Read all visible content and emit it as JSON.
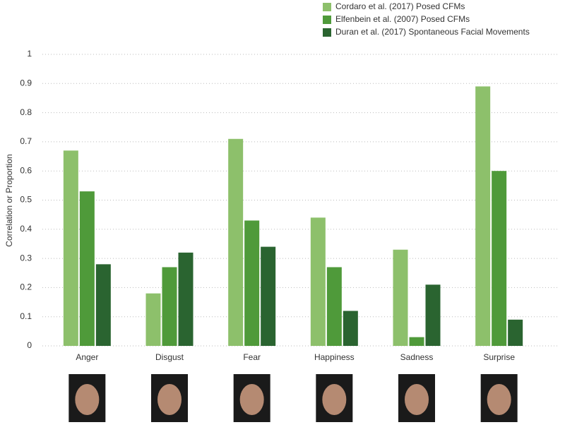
{
  "chart_data": {
    "type": "bar",
    "y_label": "Correlation or Proportion",
    "categories": [
      "Anger",
      "Disgust",
      "Fear",
      "Happiness",
      "Sadness",
      "Surprise"
    ],
    "series": [
      {
        "name": "Cordaro et al. (2017) Posed CFMs",
        "color": "#8dc06b",
        "values": [
          0.67,
          0.18,
          0.71,
          0.44,
          0.33,
          0.89
        ]
      },
      {
        "name": "Elfenbein et al. (2007) Posed CFMs",
        "color": "#4f9a3a",
        "values": [
          0.53,
          0.27,
          0.43,
          0.27,
          0.03,
          0.6
        ]
      },
      {
        "name": "Duran et al. (2017) Spontaneous Facial Movements",
        "color": "#2a6430",
        "values": [
          0.28,
          0.32,
          0.34,
          0.12,
          0.21,
          0.09
        ]
      }
    ],
    "ylim": [
      0,
      1
    ],
    "yticks": [
      0,
      0.1,
      0.2,
      0.3,
      0.4,
      0.5,
      0.6,
      0.7,
      0.8,
      0.9,
      1
    ],
    "grid": true,
    "legend": "top-right"
  }
}
